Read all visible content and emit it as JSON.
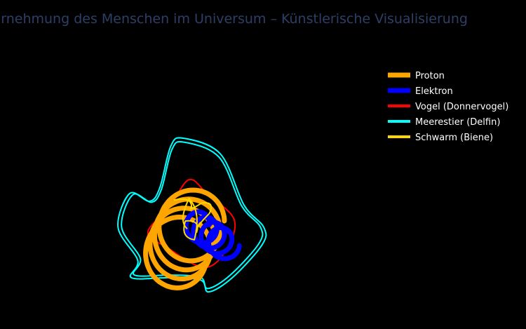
{
  "title": "Wahrnehmung des Menschen im Universum – Künstlerische Visualisierung",
  "colors": {
    "background": "#000000",
    "title": "#2e3f66"
  },
  "chart_data": {
    "type": "line",
    "title": "Wahrnehmung des Menschen im Universum – Künstlerische Visualisierung",
    "xlabel": "",
    "ylabel": "",
    "axes_visible": false,
    "grid": false,
    "legend_position": "top-right",
    "xlim": [
      -1.5,
      1.5
    ],
    "ylim": [
      -1.5,
      1.5
    ],
    "series": [
      {
        "name": "Proton",
        "color": "#ffa500",
        "shape": "helical rings",
        "center": [
          0.0,
          0.0
        ],
        "radius": 0.42,
        "turns": 4,
        "drift_x": -0.06,
        "drift_y": -0.12,
        "line_width": 7
      },
      {
        "name": "Elektron",
        "color": "#0000ff",
        "shape": "helical rings",
        "center": [
          0.04,
          -0.05
        ],
        "radius": 0.18,
        "turns": 4,
        "drift_x": 0.1,
        "drift_y": -0.07,
        "line_width": 7
      },
      {
        "name": "Vogel (Donnervogel)",
        "color": "#ff0000",
        "shape": "closed curve",
        "points": [
          [
            -0.05,
            0.55
          ],
          [
            0.2,
            0.35
          ],
          [
            0.55,
            0.02
          ],
          [
            0.45,
            -0.38
          ],
          [
            0.15,
            -0.62
          ],
          [
            -0.35,
            -0.35
          ],
          [
            -0.6,
            -0.15
          ],
          [
            -0.3,
            0.2
          ]
        ],
        "line_width": 2
      },
      {
        "name": "Meerestier (Delfin)",
        "color": "#00ffff",
        "shape": "double closed curve",
        "points": [
          [
            -0.28,
            0.95
          ],
          [
            -0.12,
            1.05
          ],
          [
            0.35,
            0.85
          ],
          [
            0.65,
            0.2
          ],
          [
            0.9,
            -0.08
          ],
          [
            0.88,
            -0.3
          ],
          [
            0.5,
            -0.72
          ],
          [
            0.2,
            -0.9
          ],
          [
            0.1,
            -0.75
          ],
          [
            -0.3,
            -0.72
          ],
          [
            -0.78,
            -0.72
          ],
          [
            -0.7,
            -0.5
          ],
          [
            -0.95,
            -0.08
          ],
          [
            -0.8,
            0.35
          ],
          [
            -0.55,
            0.25
          ],
          [
            -0.42,
            0.42
          ]
        ],
        "offset": 0.05,
        "line_width": 2
      },
      {
        "name": "Schwarm (Biene)",
        "color": "#ffd700",
        "shape": "bee swarm loops",
        "points": [
          [
            -0.25,
            0.28
          ],
          [
            -0.02,
            0.18
          ],
          [
            0.12,
            0.24
          ],
          [
            0.22,
            0.1
          ],
          [
            0.05,
            -0.15
          ],
          [
            -0.1,
            0.0
          ],
          [
            0.02,
            -0.25
          ],
          [
            -0.05,
            0.3
          ],
          [
            -0.08,
            -0.1
          ]
        ],
        "line_width": 2
      }
    ]
  }
}
